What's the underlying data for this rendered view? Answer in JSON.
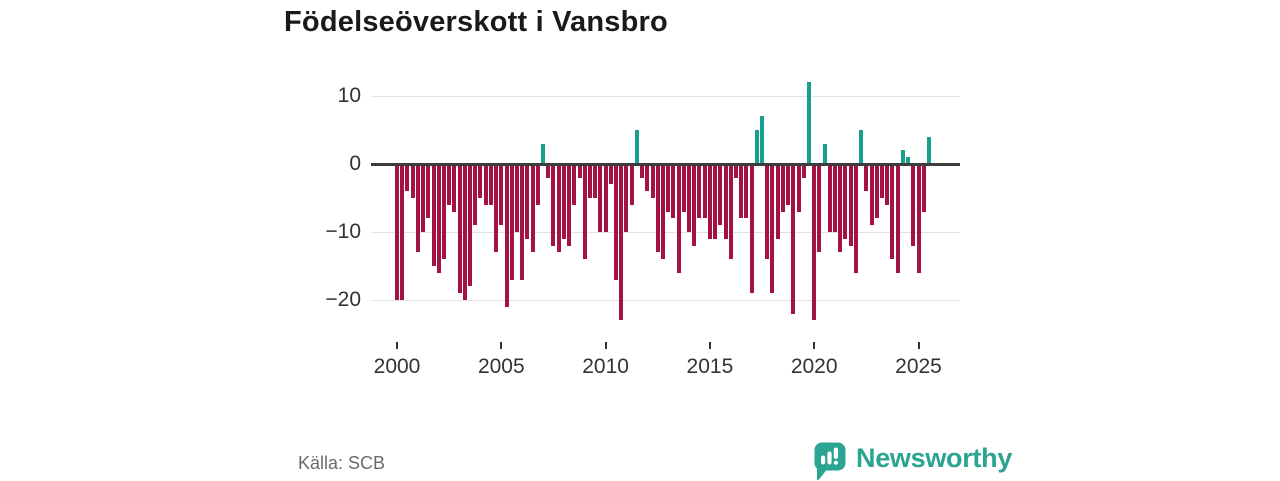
{
  "title": "Födelseöverskott i Vansbro",
  "source": "Källa: SCB",
  "logo": {
    "text": "Newsworthy"
  },
  "colors": {
    "negative_bar": "#a41244",
    "positive_bar": "#16a08f",
    "zero_line": "#3c3c3c",
    "gridline": "#e2e2e2",
    "title_text": "#1a1a1a",
    "axis_text": "#333333",
    "source_text": "#6b6b6b",
    "logo": "#2ba491"
  },
  "chart_data": {
    "type": "bar",
    "title": "Födelseöverskott i Vansbro",
    "xlabel": "",
    "ylabel": "",
    "frequency": "quarterly",
    "start_period": "2000 Q1",
    "end_period": "2025 Q3",
    "grid": true,
    "ylim": [
      -24,
      13
    ],
    "yticks": [
      10,
      0,
      -10,
      -20
    ],
    "ytick_labels": [
      "10",
      "0",
      "−10",
      "−20"
    ],
    "xticks": [
      2000,
      2005,
      2010,
      2015,
      2020,
      2025
    ],
    "values": [
      -20,
      -20,
      -4,
      -5,
      -13,
      -10,
      -8,
      -15,
      -16,
      -14,
      -6,
      -7,
      -19,
      -20,
      -18,
      -9,
      -5,
      -6,
      -6,
      -13,
      -9,
      -21,
      -17,
      -10,
      -17,
      -11,
      -13,
      -6,
      3,
      -2,
      -12,
      -13,
      -11,
      -12,
      -6,
      -2,
      -14,
      -5,
      -5,
      -10,
      -10,
      -3,
      -17,
      -23,
      -10,
      -6,
      5,
      -2,
      -4,
      -5,
      -13,
      -14,
      -7,
      -8,
      -16,
      -7,
      -10,
      -12,
      -8,
      -8,
      -11,
      -11,
      -9,
      -11,
      -14,
      -2,
      -8,
      -8,
      -19,
      5,
      7,
      -14,
      -19,
      -11,
      -7,
      -6,
      -22,
      -7,
      -2,
      12,
      -23,
      -13,
      3,
      -10,
      -10,
      -13,
      -11,
      -12,
      -16,
      5,
      -4,
      -9,
      -8,
      -5,
      -6,
      -14,
      -16,
      2,
      1,
      -12,
      -16,
      -7,
      4
    ]
  }
}
